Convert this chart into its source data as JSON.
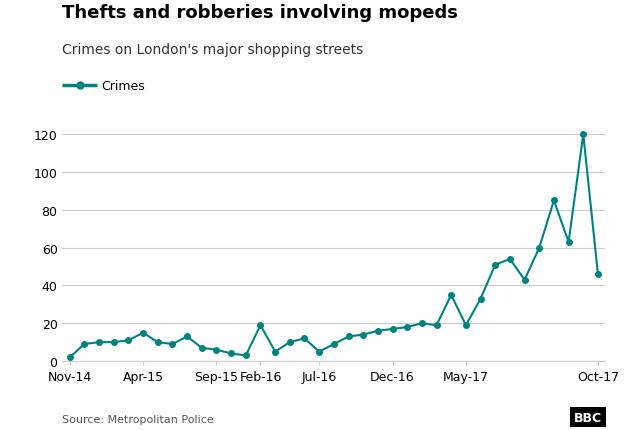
{
  "title": "Thefts and robberies involving mopeds",
  "subtitle": "Crimes on London's major shopping streets",
  "legend_label": "Crimes",
  "source": "Source: Metropolitan Police",
  "line_color": "#00827F",
  "background_color": "#ffffff",
  "ylim": [
    0,
    130
  ],
  "yticks": [
    0,
    20,
    40,
    60,
    80,
    100,
    120
  ],
  "x_labels": [
    "Nov-14",
    "Apr-15",
    "Sep-15",
    "Feb-16",
    "Jul-16",
    "Dec-16",
    "May-17",
    "Oct-17"
  ],
  "x_tick_positions": [
    0,
    5,
    10,
    13,
    17,
    22,
    27,
    36
  ],
  "values": [
    2,
    9,
    10,
    10,
    11,
    15,
    10,
    9,
    13,
    7,
    6,
    4,
    3,
    19,
    5,
    10,
    12,
    5,
    9,
    13,
    14,
    16,
    17,
    18,
    20,
    19,
    35,
    19,
    33,
    51,
    54,
    43,
    60,
    85,
    63,
    120,
    46
  ],
  "title_fontsize": 13,
  "subtitle_fontsize": 10,
  "tick_fontsize": 9,
  "legend_fontsize": 9,
  "source_fontsize": 8
}
